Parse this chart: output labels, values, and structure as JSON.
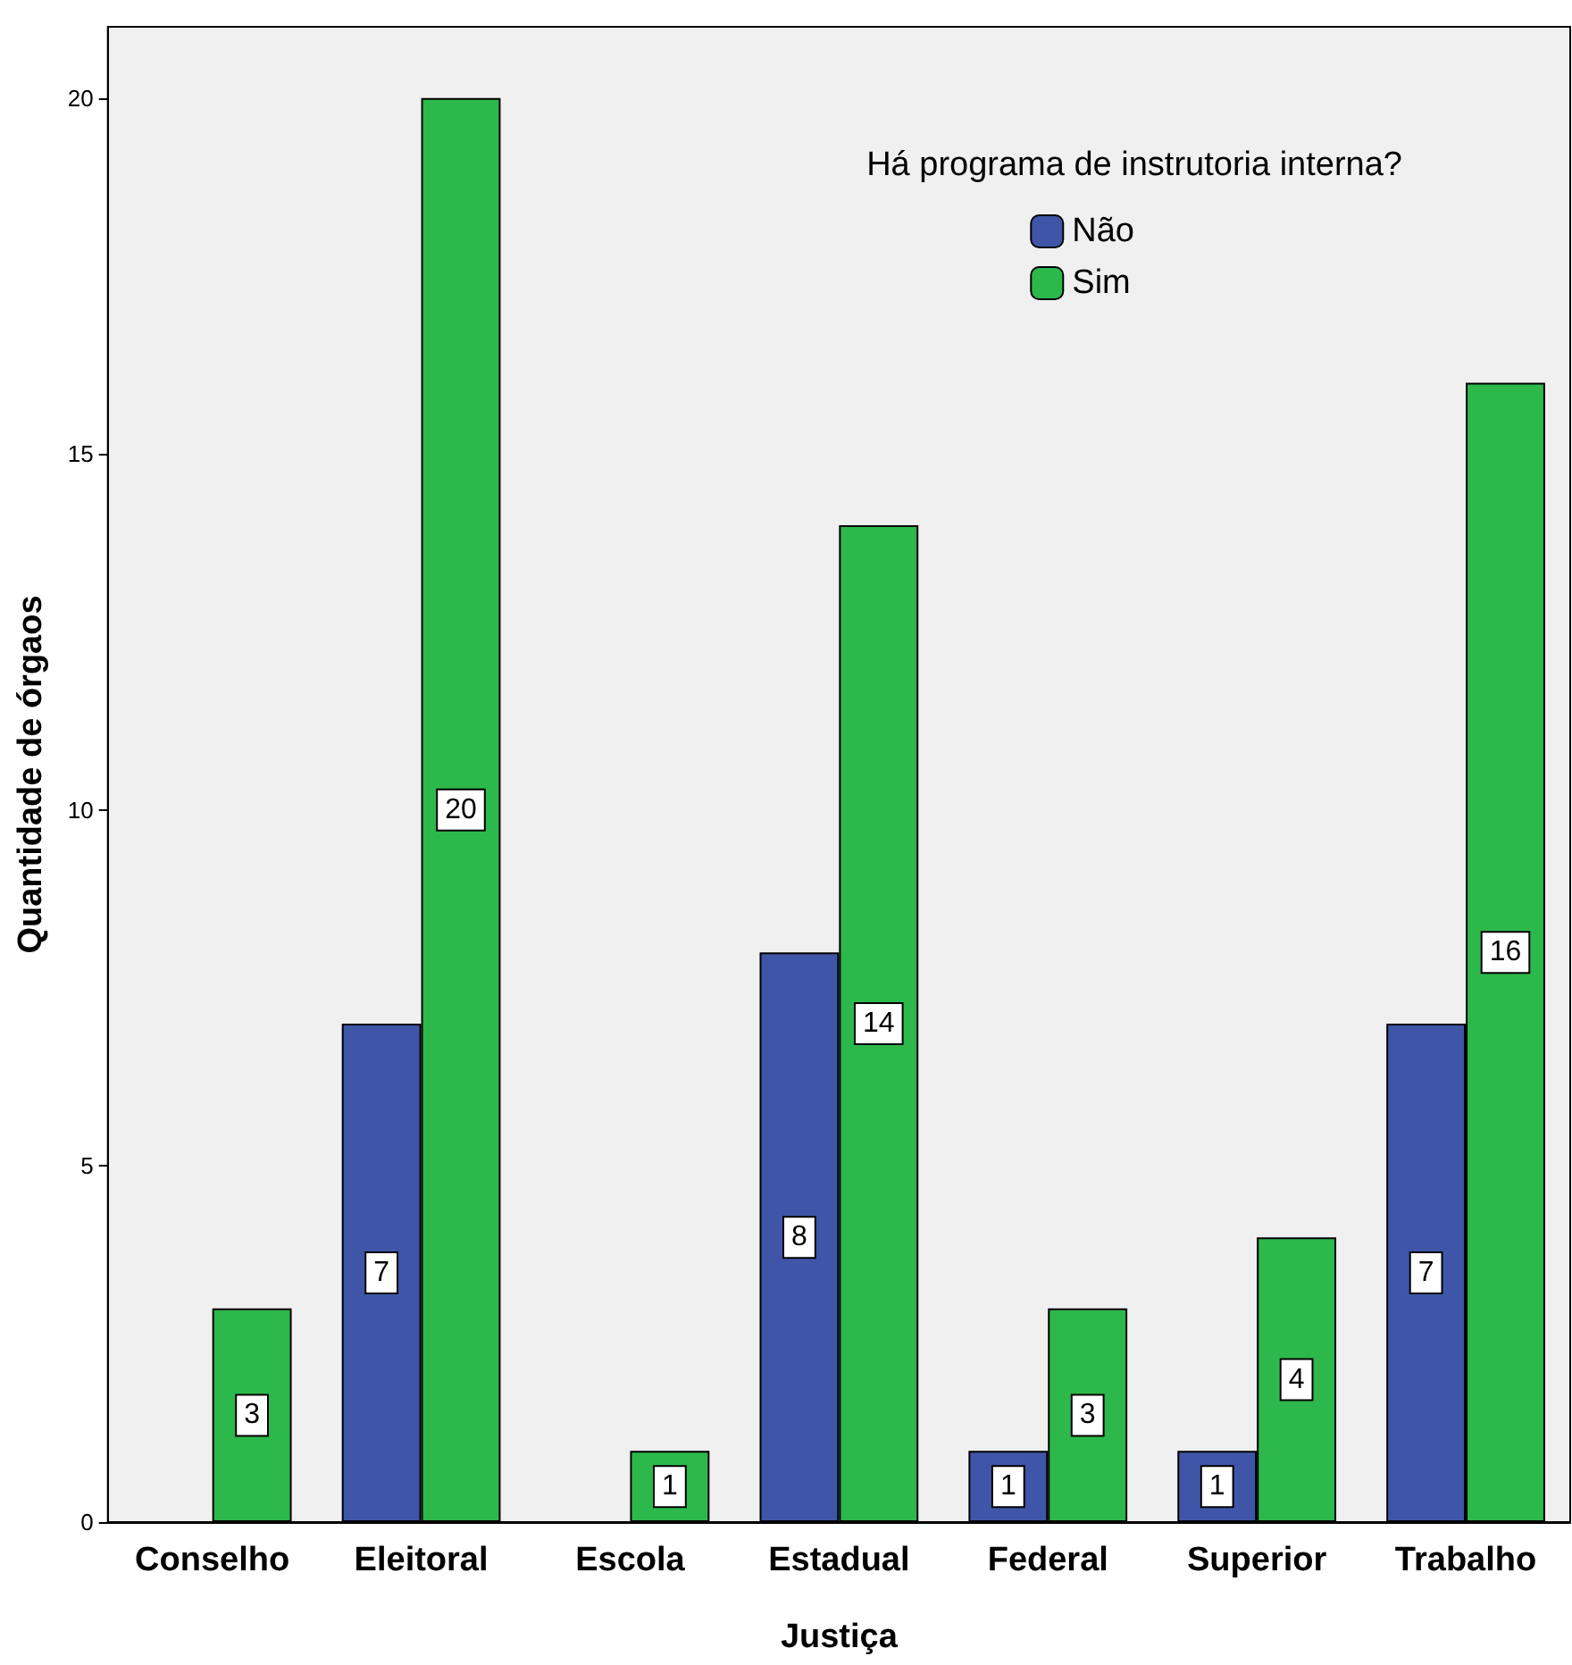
{
  "chart_data": {
    "type": "bar",
    "xlabel": "Justiça",
    "ylabel": "Quantidade de órgaos",
    "legend_title": "Há programa de instrutoria interna?",
    "categories": [
      "Conselho",
      "Eleitoral",
      "Escola",
      "Estadual",
      "Federal",
      "Superior",
      "Trabalho"
    ],
    "series": [
      {
        "name": "Não",
        "color": "#3f56a8",
        "values": [
          null,
          7,
          null,
          8,
          1,
          1,
          7
        ]
      },
      {
        "name": "Sim",
        "color": "#2db84b",
        "values": [
          3,
          20,
          1,
          14,
          3,
          4,
          16
        ]
      }
    ],
    "ylim": [
      0,
      21
    ],
    "yticks": [
      0,
      5,
      10,
      15,
      20
    ],
    "grid": false,
    "legend": "top right",
    "data_labels": true
  }
}
